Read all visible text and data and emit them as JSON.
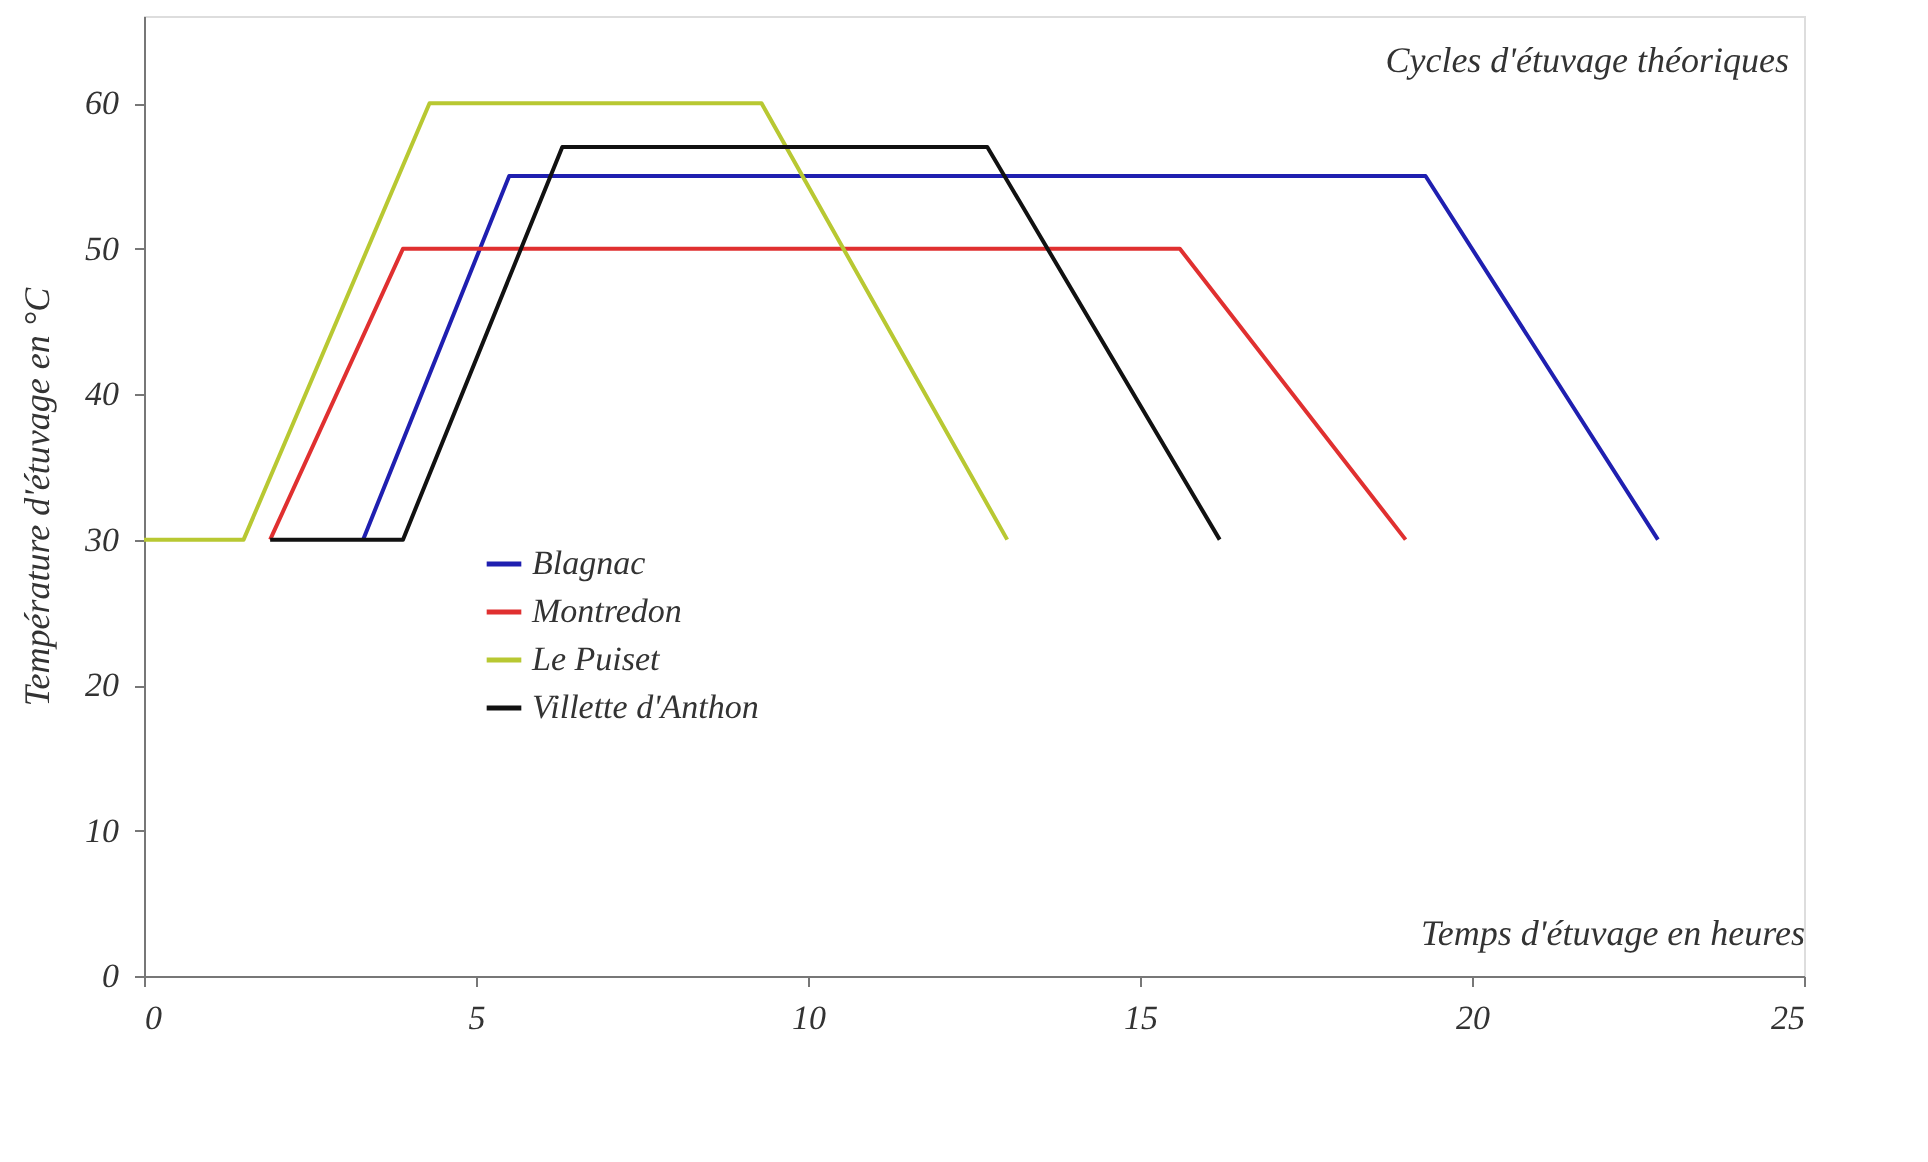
{
  "chart_data": {
    "type": "line",
    "title": "Cycles d'étuvage théoriques",
    "xlabel": "Temps d'étuvage en heures",
    "ylabel": "Température d'étuvage en °C",
    "series": [
      {
        "name": "Blagnac",
        "color": "#1f1fb0",
        "x": [
          3.3,
          5.5,
          19.3,
          22.8
        ],
        "values": [
          30,
          55,
          55,
          30
        ]
      },
      {
        "name": "Montredon",
        "color": "#e03030",
        "x": [
          1.9,
          3.9,
          15.6,
          19.0
        ],
        "values": [
          30,
          50,
          50,
          30
        ]
      },
      {
        "name": "Le Puiset",
        "color": "#b8c832",
        "x": [
          0,
          1.5,
          4.3,
          9.3,
          13.0
        ],
        "values": [
          30,
          30,
          60,
          60,
          30
        ]
      },
      {
        "name": "Villette d'Anthon",
        "color": "#111111",
        "x": [
          1.9,
          3.9,
          6.3,
          12.7,
          16.2
        ],
        "values": [
          30,
          30,
          57,
          57,
          30
        ]
      }
    ],
    "xlim": [
      0,
      25
    ],
    "xticks": [
      0,
      5,
      10,
      15,
      20,
      25
    ],
    "ylim": [
      0,
      66
    ],
    "yticks": [
      0,
      10,
      20,
      30,
      40,
      50,
      60
    ],
    "grid": false,
    "legend": "left",
    "marker": "none",
    "line_style": "solid"
  }
}
